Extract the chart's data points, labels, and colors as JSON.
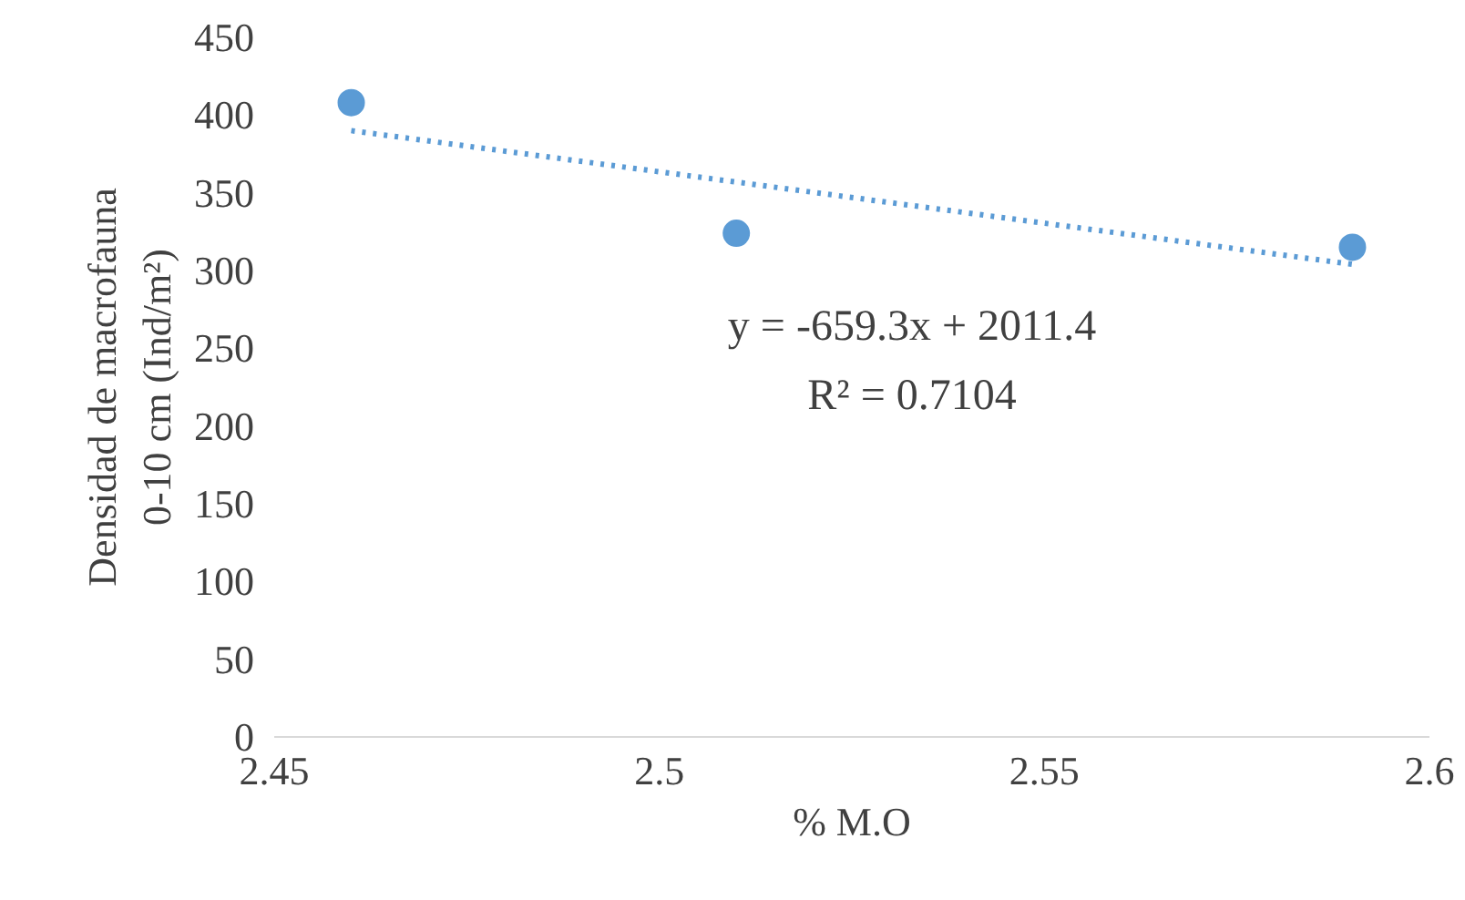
{
  "chart_data": {
    "type": "scatter",
    "xlabel": "% M.O",
    "ylabel": "Densidad de macrofauna\n0-10 cm (Ind/m²)",
    "xlim": [
      2.45,
      2.6
    ],
    "xticks": [
      2.45,
      2.5,
      2.55,
      2.6
    ],
    "ylim": [
      0,
      450
    ],
    "yticks": [
      0,
      50,
      100,
      150,
      200,
      250,
      300,
      350,
      400,
      450
    ],
    "grid": false,
    "series": [
      {
        "color": "#5b9bd5",
        "marker": "circle",
        "x": [
          2.46,
          2.51,
          2.59
        ],
        "values": [
          408,
          324,
          315
        ]
      },
      {
        "type": "line",
        "color": "#5b9bd5",
        "marker": "none",
        "line_style": "dotted",
        "x": [
          2.46,
          2.59
        ],
        "values": [
          390,
          304
        ]
      }
    ],
    "annotations": [
      "y = -659.3x + 2011.4",
      "R² = 0.7104"
    ]
  }
}
